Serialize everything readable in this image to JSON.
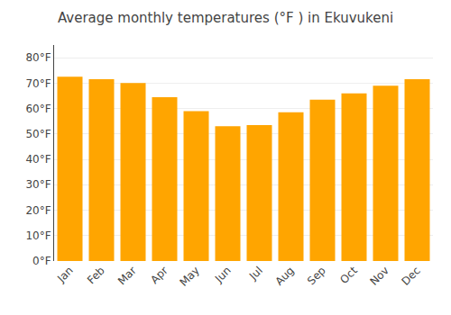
{
  "chart_data": {
    "type": "bar",
    "title": "Average monthly temperatures (°F ) in Ekuvukeni",
    "categories": [
      "Jan",
      "Feb",
      "Mar",
      "Apr",
      "May",
      "Jun",
      "Jul",
      "Aug",
      "Sep",
      "Oct",
      "Nov",
      "Dec"
    ],
    "values": [
      72.5,
      71.5,
      70.0,
      64.5,
      59.0,
      53.0,
      53.5,
      58.5,
      63.5,
      66.0,
      69.0,
      71.5
    ],
    "color": "#FFA500",
    "ylim": [
      0,
      85
    ],
    "yticks": [
      {
        "value": 0,
        "label": "0°F"
      },
      {
        "value": 10,
        "label": "10°F"
      },
      {
        "value": 20,
        "label": "20°F"
      },
      {
        "value": 30,
        "label": "30°F"
      },
      {
        "value": 40,
        "label": "40°F"
      },
      {
        "value": 50,
        "label": "50°F"
      },
      {
        "value": 60,
        "label": "60°F"
      },
      {
        "value": 70,
        "label": "70°F"
      },
      {
        "value": 80,
        "label": "80°F"
      }
    ],
    "grid": true
  }
}
